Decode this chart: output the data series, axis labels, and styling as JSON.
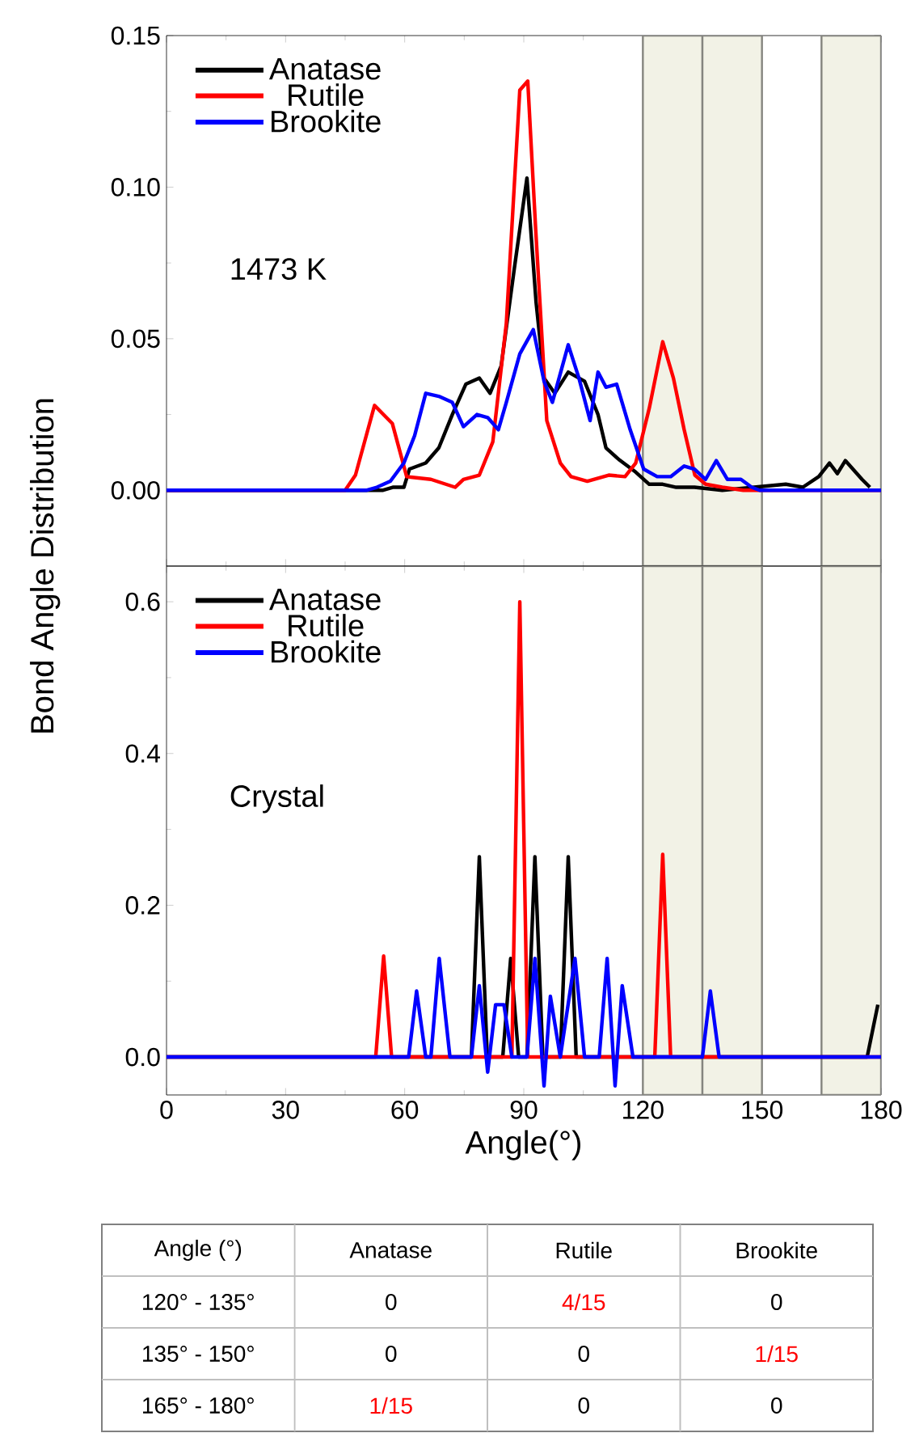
{
  "chart_data": [
    {
      "type": "line",
      "ylabel": "Bond Angle Distribution",
      "legend": "top left",
      "tick_labels": "y",
      "annotations": [
        "1473 K"
      ],
      "xlim": [
        0,
        180
      ],
      "xticks": [
        0,
        30,
        60,
        90,
        120,
        150,
        180
      ],
      "ylim": [
        -0.025,
        0.15
      ],
      "yticks": [
        {
          "value": 0,
          "label": "0.00"
        },
        {
          "value": 0.05,
          "label": "0.05"
        },
        {
          "value": 0.1,
          "label": "0.10"
        },
        {
          "value": 0.15,
          "label": "0.15"
        }
      ],
      "bands": [
        {
          "axis": "x",
          "from": 120,
          "to": 135,
          "color": "#f2f2e6"
        },
        {
          "axis": "x",
          "from": 135,
          "to": 150,
          "color": "#f2f2e6"
        },
        {
          "axis": "x",
          "from": 165,
          "to": 180,
          "color": "#f2f2e6"
        }
      ],
      "series": [
        {
          "name": "Anatase",
          "color": "#000000",
          "x": [
            0,
            54.4,
            57,
            59.8,
            61.2,
            65.3,
            68.6,
            72,
            75.4,
            78.8,
            81.5,
            84.3,
            87.6,
            90.8,
            93.1,
            95.1,
            97.8,
            101.2,
            105.3,
            108.7,
            110.7,
            114.1,
            118.2,
            121.6,
            125,
            128.4,
            133,
            140,
            148,
            156,
            160.3,
            164.3,
            167,
            169,
            171,
            175.2,
            177.2
          ],
          "values": [
            0,
            0,
            0.001,
            0.001,
            0.007,
            0.009,
            0.014,
            0.025,
            0.035,
            0.037,
            0.032,
            0.041,
            0.073,
            0.103,
            0.062,
            0.037,
            0.032,
            0.039,
            0.036,
            0.025,
            0.014,
            0.01,
            0.006,
            0.002,
            0.002,
            0.001,
            0.001,
            0,
            0.001,
            0.002,
            0.001,
            0.0045,
            0.009,
            0.0055,
            0.0098,
            0.0036,
            0.001
          ]
        },
        {
          "name": "Rutile",
          "color": "#ff0000",
          "x": [
            0,
            45,
            47.6,
            52.4,
            56.9,
            60.5,
            66.6,
            72.7,
            74.8,
            78.8,
            82.2,
            85.6,
            89,
            91,
            93,
            95.8,
            99.2,
            101.9,
            106,
            111.4,
            115.5,
            118.2,
            121.6,
            125,
            127.7,
            130.4,
            133.1,
            135.8,
            140,
            145.3,
            180
          ],
          "values": [
            0,
            0,
            0.005,
            0.028,
            0.022,
            0.0045,
            0.0036,
            0.001,
            0.0036,
            0.005,
            0.016,
            0.055,
            0.132,
            0.135,
            0.086,
            0.023,
            0.009,
            0.0045,
            0.003,
            0.005,
            0.0045,
            0.009,
            0.027,
            0.049,
            0.037,
            0.02,
            0.005,
            0.002,
            0.001,
            0,
            0
          ]
        },
        {
          "name": "Brookite",
          "color": "#0000ff",
          "x": [
            0,
            50.3,
            53,
            56.4,
            59.8,
            62.5,
            65.3,
            68.6,
            72,
            74.8,
            78.2,
            80.9,
            83.6,
            85.6,
            89,
            92.4,
            95.1,
            97.2,
            101.2,
            103.9,
            106.7,
            108.7,
            110.7,
            113.4,
            116.8,
            120.2,
            123.6,
            127,
            130.4,
            133,
            135.8,
            138.5,
            141.3,
            144.7,
            147.4,
            149.4,
            180
          ],
          "values": [
            0,
            0,
            0.001,
            0.003,
            0.009,
            0.018,
            0.032,
            0.031,
            0.029,
            0.021,
            0.025,
            0.024,
            0.02,
            0.029,
            0.045,
            0.053,
            0.036,
            0.029,
            0.048,
            0.037,
            0.023,
            0.039,
            0.034,
            0.035,
            0.02,
            0.007,
            0.0045,
            0.0045,
            0.008,
            0.007,
            0.0036,
            0.0098,
            0.0036,
            0.0036,
            0.001,
            0,
            0
          ]
        }
      ]
    },
    {
      "type": "line",
      "xlabel": "Angle(°)",
      "legend": "top left",
      "annotations": [
        "Crystal"
      ],
      "xlim": [
        0,
        180
      ],
      "xticks": [
        0,
        30,
        60,
        90,
        120,
        150,
        180
      ],
      "ylim": [
        -0.05,
        0.647
      ],
      "yticks": [
        {
          "value": 0,
          "label": "0.0"
        },
        {
          "value": 0.2,
          "label": "0.2"
        },
        {
          "value": 0.4,
          "label": "0.4"
        },
        {
          "value": 0.6,
          "label": "0.6"
        }
      ],
      "bands": [
        {
          "axis": "x",
          "from": 120,
          "to": 135,
          "color": "#f2f2e6"
        },
        {
          "axis": "x",
          "from": 135,
          "to": 150,
          "color": "#f2f2e6"
        },
        {
          "axis": "x",
          "from": 165,
          "to": 180,
          "color": "#f2f2e6"
        }
      ],
      "series": [
        {
          "name": "Anatase",
          "color": "#000000",
          "x": [
            0,
            76.8,
            78.8,
            80.8,
            84.7,
            86.7,
            88.7,
            90.8,
            92.8,
            94.8,
            99.2,
            101.2,
            103.2,
            176.5,
            179.2
          ],
          "values": [
            0,
            0,
            0.264,
            0,
            0,
            0.13,
            0,
            0,
            0.264,
            0,
            0,
            0.264,
            0,
            0,
            0.069
          ]
        },
        {
          "name": "Rutile",
          "color": "#ff0000",
          "x": [
            0,
            52.7,
            54.7,
            56.7,
            87,
            89,
            91,
            123,
            125,
            127,
            180
          ],
          "values": [
            0,
            0,
            0.133,
            0,
            0,
            0.6,
            0,
            0,
            0.267,
            0,
            0
          ]
        },
        {
          "name": "Brookite",
          "color": "#0000ff",
          "x": [
            0,
            61,
            63,
            65.3,
            66.6,
            68.7,
            71.4,
            76.8,
            78.8,
            80.9,
            82.9,
            85,
            87,
            90.8,
            92.8,
            95.1,
            96.7,
            99.2,
            102.9,
            105.3,
            109,
            111,
            113,
            114.8,
            117.5,
            135,
            137,
            139.2,
            180
          ],
          "values": [
            0,
            0,
            0.087,
            0,
            0,
            0.13,
            0,
            0,
            0.094,
            -0.02,
            0.069,
            0.069,
            0,
            0,
            0.13,
            -0.038,
            0.08,
            0,
            0.13,
            0,
            0,
            0.13,
            -0.038,
            0.094,
            0,
            0,
            0.087,
            0,
            0
          ]
        }
      ]
    },
    {
      "type": "other",
      "ylabel": "Angle (°)",
      "categories": [
        "Anatase",
        "Rutile",
        "Brookite"
      ],
      "y_categories": [
        "120° - 135°",
        "135° - 150°",
        "165° - 180°"
      ],
      "colors": [
        [
          "#000000",
          "#ff0000",
          "#000000"
        ],
        [
          "#000000",
          "#000000",
          "#ff0000"
        ],
        [
          "#ff0000",
          "#000000",
          "#000000"
        ]
      ],
      "cell_labels": [
        [
          "0",
          "4/15",
          "0"
        ],
        [
          "0",
          "0",
          "1/15"
        ],
        [
          "1/15",
          "0",
          "0"
        ]
      ]
    }
  ]
}
